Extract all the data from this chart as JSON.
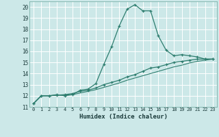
{
  "title": "",
  "xlabel": "Humidex (Indice chaleur)",
  "background_color": "#cce8e8",
  "grid_color": "#ffffff",
  "line_color": "#2d7d6e",
  "xlim": [
    -0.5,
    23.5
  ],
  "ylim": [
    11,
    20.5
  ],
  "xticks": [
    0,
    1,
    2,
    3,
    4,
    5,
    6,
    7,
    8,
    9,
    10,
    11,
    12,
    13,
    14,
    15,
    16,
    17,
    18,
    19,
    20,
    21,
    22,
    23
  ],
  "yticks": [
    11,
    12,
    13,
    14,
    15,
    16,
    17,
    18,
    19,
    20
  ],
  "line1_x": [
    0,
    1,
    2,
    3,
    4,
    5,
    6,
    7,
    8,
    9,
    10,
    11,
    12,
    13,
    14,
    15,
    16,
    17,
    18,
    19,
    20,
    21,
    22,
    23
  ],
  "line1_y": [
    11.3,
    12.0,
    12.0,
    12.1,
    12.0,
    12.1,
    12.5,
    12.6,
    13.1,
    14.8,
    16.4,
    18.3,
    19.8,
    20.2,
    19.65,
    19.65,
    17.4,
    16.1,
    15.6,
    15.7,
    15.6,
    15.5,
    15.3,
    15.3
  ],
  "line2_x": [
    0,
    1,
    2,
    3,
    4,
    5,
    6,
    7,
    8,
    9,
    10,
    11,
    12,
    13,
    14,
    15,
    16,
    17,
    18,
    19,
    20,
    21,
    22,
    23
  ],
  "line2_y": [
    11.3,
    12.0,
    12.0,
    12.05,
    12.1,
    12.2,
    12.4,
    12.5,
    12.7,
    13.0,
    13.2,
    13.4,
    13.7,
    13.9,
    14.2,
    14.5,
    14.6,
    14.8,
    15.0,
    15.1,
    15.2,
    15.3,
    15.3,
    15.3
  ],
  "line3_x": [
    0,
    1,
    2,
    3,
    4,
    5,
    6,
    7,
    8,
    9,
    10,
    11,
    12,
    13,
    14,
    15,
    16,
    17,
    18,
    19,
    20,
    21,
    22,
    23
  ],
  "line3_y": [
    11.3,
    12.0,
    12.0,
    12.05,
    12.05,
    12.1,
    12.25,
    12.4,
    12.55,
    12.75,
    12.95,
    13.15,
    13.4,
    13.6,
    13.8,
    14.0,
    14.2,
    14.4,
    14.6,
    14.75,
    14.95,
    15.1,
    15.2,
    15.3
  ]
}
